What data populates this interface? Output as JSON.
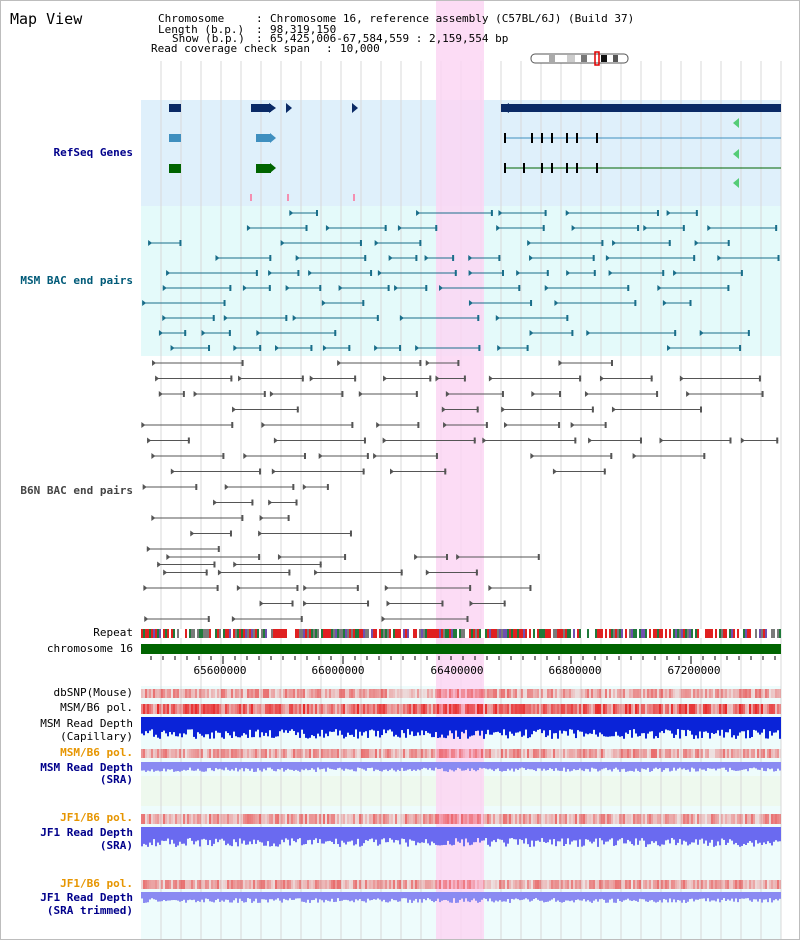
{
  "header": {
    "title": "Map View",
    "chromosome_key": "Chromosome",
    "chromosome_value": "Chromosome 16, reference assembly (C57BL/6J) (Build 37)",
    "length_key": "Length (b.p.)",
    "length_value": "98,319,150",
    "show_key": "Show (b.p.)",
    "show_value": "65,425,006-67,584,559 : 2,159,554 bp",
    "coverage_key": "Read coverage check span",
    "coverage_value": "10,000"
  },
  "tracks": {
    "refseq": "RefSeq Genes",
    "msm_bac": "MSM BAC end pairs",
    "b6n_bac": "B6N BAC end pairs",
    "repeat": "Repeat",
    "chromosome": "chromosome 16",
    "dbsnp": "dbSNP(Mouse)",
    "msm_pol1": "MSM/B6 pol.",
    "msm_depth_cap_1": "MSM Read Depth",
    "msm_depth_cap_2": "(Capillary)",
    "msm_pol2": "MSM/B6 pol.",
    "msm_depth_sra_1": "MSM Read Depth",
    "msm_depth_sra_2": "(SRA)",
    "jf1_pol1": "JF1/B6 pol.",
    "jf1_depth_1": "JF1 Read Depth",
    "jf1_depth_2": "(SRA)",
    "jf1_pol2": "JF1/B6 pol.",
    "jf1_trim_1": "JF1 Read Depth",
    "jf1_trim_2": "(SRA trimmed)"
  },
  "axis": {
    "ticks": [
      "65600000",
      "66000000",
      "66400000",
      "66800000",
      "67200000"
    ]
  },
  "colors": {
    "navy": "#0a2a66",
    "refseq_bg": "#dff0fb",
    "msm_bg": "#e4fafa",
    "highlight": "#fbd6f3",
    "gene_green": "#006400",
    "label_blue": "#00008b",
    "label_teal": "#005a78",
    "label_orange": "#e69500"
  }
}
